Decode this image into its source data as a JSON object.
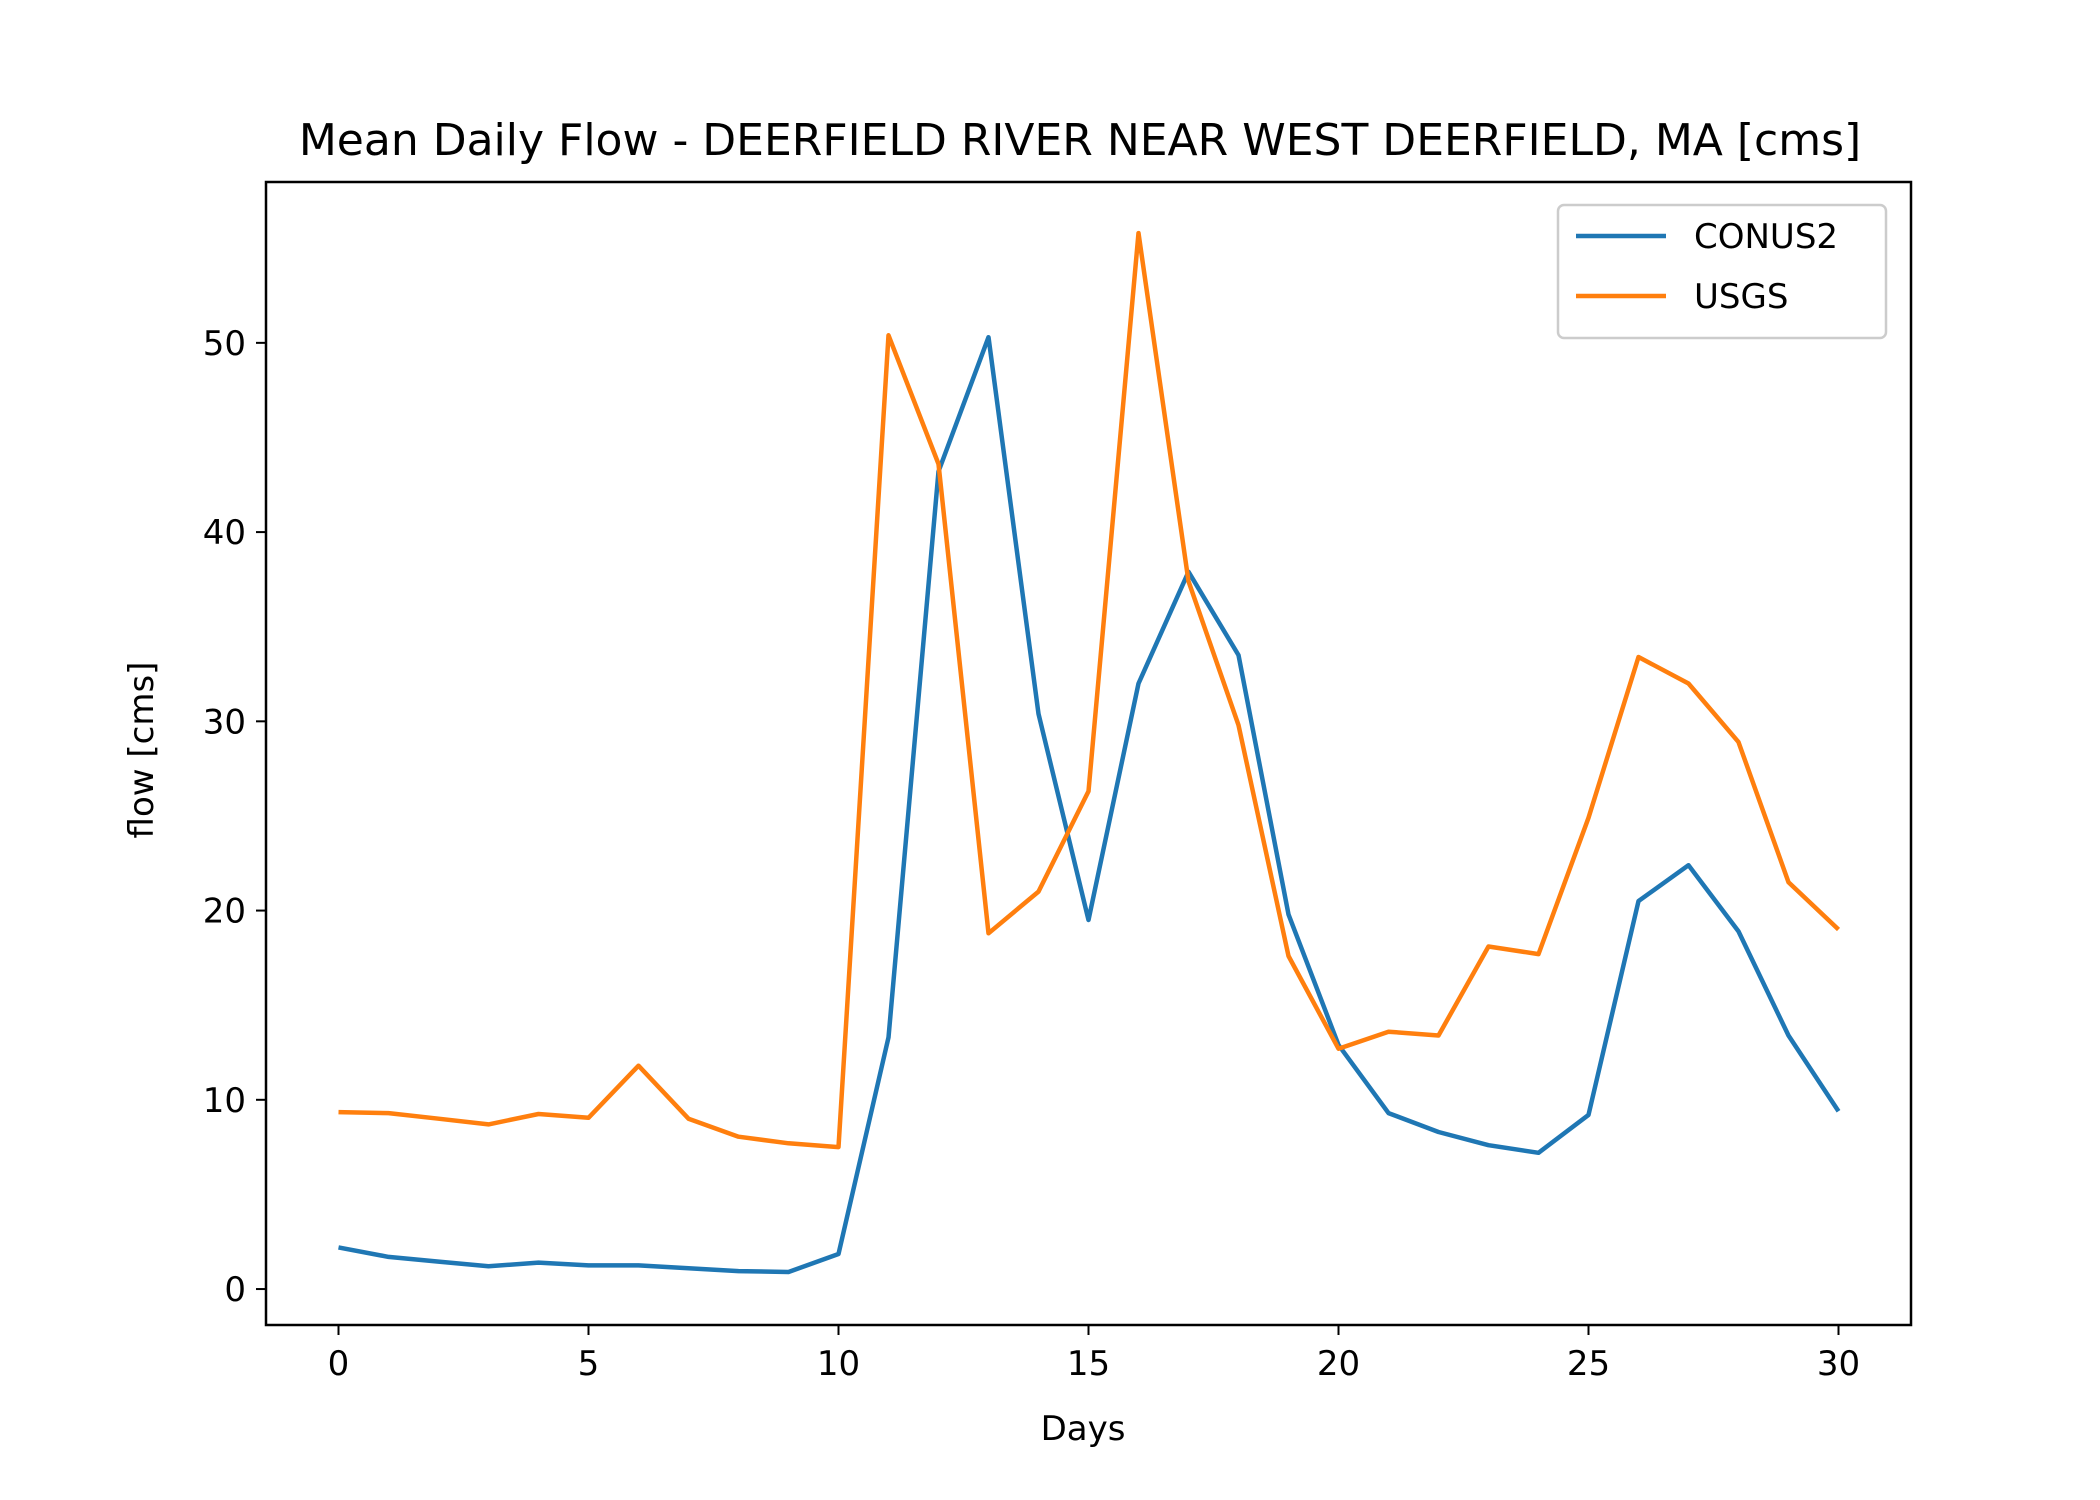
{
  "chart_data": {
    "type": "line",
    "title": "Mean Daily Flow - DEERFIELD RIVER NEAR WEST DEERFIELD, MA [cms]",
    "xlabel": "Days",
    "ylabel": "flow [cms]",
    "xlim": [
      -1.45,
      31.45
    ],
    "ylim": [
      -1.9,
      58.5
    ],
    "xticks": [
      0,
      5,
      10,
      15,
      20,
      25,
      30
    ],
    "yticks": [
      0,
      10,
      20,
      30,
      40,
      50
    ],
    "grid": false,
    "legend_position": "top-right",
    "x": [
      0,
      1,
      2,
      3,
      4,
      5,
      6,
      7,
      8,
      9,
      10,
      11,
      12,
      13,
      14,
      15,
      16,
      17,
      18,
      19,
      20,
      21,
      22,
      23,
      24,
      25,
      26,
      27,
      28,
      29,
      30
    ],
    "series": [
      {
        "name": "CONUS2",
        "color": "#1f77b4",
        "values": [
          2.2,
          1.7,
          1.45,
          1.2,
          1.4,
          1.25,
          1.25,
          1.1,
          0.95,
          0.9,
          1.85,
          13.3,
          43.2,
          50.3,
          30.4,
          19.5,
          32.0,
          37.9,
          33.5,
          19.8,
          12.9,
          9.3,
          8.3,
          7.6,
          7.2,
          9.2,
          20.5,
          22.4,
          18.9,
          13.4,
          9.4
        ]
      },
      {
        "name": "USGS",
        "color": "#ff7f0e",
        "values": [
          9.35,
          9.3,
          9.0,
          8.7,
          9.25,
          9.05,
          11.8,
          9.0,
          8.05,
          7.7,
          7.5,
          50.4,
          43.6,
          18.8,
          21.0,
          26.3,
          55.8,
          37.4,
          29.8,
          17.6,
          12.7,
          13.6,
          13.4,
          18.1,
          17.7,
          24.9,
          33.4,
          32.0,
          28.9,
          21.5,
          19.0
        ]
      }
    ]
  }
}
